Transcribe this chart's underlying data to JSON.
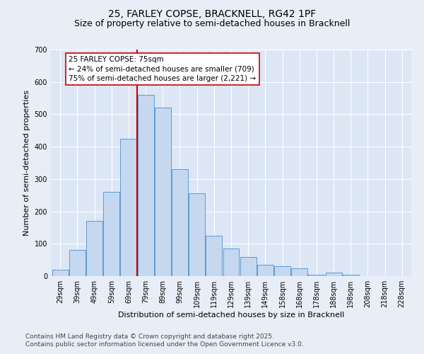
{
  "title_line1": "25, FARLEY COPSE, BRACKNELL, RG42 1PF",
  "title_line2": "Size of property relative to semi-detached houses in Bracknell",
  "xlabel": "Distribution of semi-detached houses by size in Bracknell",
  "ylabel": "Number of semi-detached properties",
  "bar_labels": [
    "29sqm",
    "39sqm",
    "49sqm",
    "59sqm",
    "69sqm",
    "79sqm",
    "89sqm",
    "99sqm",
    "109sqm",
    "119sqm",
    "129sqm",
    "139sqm",
    "149sqm",
    "158sqm",
    "168sqm",
    "178sqm",
    "188sqm",
    "198sqm",
    "208sqm",
    "218sqm",
    "228sqm"
  ],
  "bar_heights": [
    20,
    80,
    170,
    260,
    425,
    560,
    520,
    330,
    255,
    125,
    85,
    60,
    35,
    30,
    25,
    5,
    10,
    5,
    0,
    0,
    0
  ],
  "bar_color": "#c5d8f0",
  "bar_edge_color": "#5b9bd5",
  "vline_color": "#cc0000",
  "annotation_text": "25 FARLEY COPSE: 75sqm\n← 24% of semi-detached houses are smaller (709)\n75% of semi-detached houses are larger (2,221) →",
  "annotation_box_edge": "#cc0000",
  "ylim": [
    0,
    700
  ],
  "yticks": [
    0,
    100,
    200,
    300,
    400,
    500,
    600,
    700
  ],
  "bg_color": "#e8eef8",
  "plot_bg_color": "#dce6f5",
  "footer_line1": "Contains HM Land Registry data © Crown copyright and database right 2025.",
  "footer_line2": "Contains public sector information licensed under the Open Government Licence v3.0.",
  "title_fontsize": 10,
  "subtitle_fontsize": 9,
  "axis_label_fontsize": 8,
  "tick_fontsize": 7,
  "footer_fontsize": 6.5,
  "annot_fontsize": 7.5,
  "vline_x_index": 4.5
}
